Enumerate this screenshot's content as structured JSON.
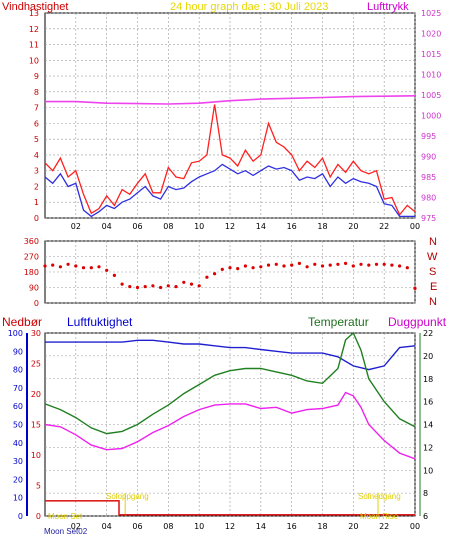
{
  "header": {
    "left_label": "Vindhastighet",
    "title": "24 hour graph dae : 30 Juli 2023",
    "right_label": "Lufttrykk"
  },
  "compass_labels": [
    "N",
    "W",
    "S",
    "E",
    "N"
  ],
  "lower_labels": {
    "precip": "Nedbør",
    "humidity": "Luftfuktighet",
    "temperature": "Temperatur",
    "dewpoint": "Duggpunkt"
  },
  "annotations": {
    "moon_set": "Moon Set",
    "moon_set_tick": "02",
    "sunrise": "Soloppgang",
    "sunset": "Solnedgang",
    "moon_rise": "Moon Rise"
  },
  "colors": {
    "wind": "#ff2020",
    "wind_avg": "#3030e0",
    "pressure": "#ee44ee",
    "direction": "#dd0000",
    "humidity": "#2020d0",
    "temperature": "#208020",
    "dewpoint": "#ee22ee",
    "precip": "#dd2020",
    "axis_left": "#cc0000",
    "axis_right": "#cc33cc",
    "grid": "#999999"
  },
  "chart_data": [
    {
      "type": "line",
      "title": "24 hour graph dae : 30 Juli 2023",
      "xlabel": "",
      "ylabel": "Vindhastighet",
      "x_ticks": [
        "02",
        "04",
        "06",
        "08",
        "10",
        "12",
        "14",
        "16",
        "18",
        "20",
        "22",
        "00"
      ],
      "xlim": [
        0,
        24
      ],
      "ylim": [
        0,
        13
      ],
      "y_ticks": [
        "0",
        "1",
        "2",
        "3",
        "4",
        "5",
        "6",
        "7",
        "8",
        "9",
        "10",
        "11",
        "12",
        "13"
      ],
      "y2lim": [
        975,
        1025
      ],
      "y2_ticks": [
        "975",
        "980",
        "985",
        "990",
        "995",
        "1000",
        "1005",
        "1010",
        "1015",
        "1020",
        "1025"
      ],
      "grid": true,
      "series": [
        {
          "name": "Vindhastighet",
          "axis": "left",
          "x": [
            0,
            0.5,
            1,
            1.5,
            2,
            2.5,
            3,
            3.5,
            4,
            4.5,
            5,
            5.5,
            6,
            6.5,
            7,
            7.5,
            8,
            8.5,
            9,
            9.5,
            10,
            10.5,
            11,
            11.5,
            12,
            12.5,
            13,
            13.5,
            14,
            14.5,
            15,
            15.5,
            16,
            16.5,
            17,
            17.5,
            18,
            18.5,
            19,
            19.5,
            20,
            20.5,
            21,
            21.5,
            22,
            22.5,
            23,
            23.5,
            24
          ],
          "values": [
            3.5,
            3.0,
            3.8,
            2.6,
            3.0,
            1.5,
            0.3,
            0.6,
            1.4,
            0.8,
            1.8,
            1.5,
            2.2,
            2.8,
            1.6,
            1.6,
            3.2,
            2.6,
            2.5,
            3.5,
            3.6,
            4.0,
            7.2,
            4.0,
            3.8,
            3.3,
            4.3,
            3.6,
            4.0,
            6.0,
            4.8,
            4.5,
            4.0,
            3.0,
            3.6,
            3.2,
            3.8,
            2.6,
            3.4,
            2.9,
            3.6,
            3.0,
            2.8,
            3.0,
            1.2,
            1.3,
            0.2,
            0.8,
            0.4
          ]
        },
        {
          "name": "Vindhastighet snitt",
          "axis": "left",
          "x": [
            0,
            0.5,
            1,
            1.5,
            2,
            2.5,
            3,
            3.5,
            4,
            4.5,
            5,
            5.5,
            6,
            6.5,
            7,
            7.5,
            8,
            8.5,
            9,
            9.5,
            10,
            10.5,
            11,
            11.5,
            12,
            12.5,
            13,
            13.5,
            14,
            14.5,
            15,
            15.5,
            16,
            16.5,
            17,
            17.5,
            18,
            18.5,
            19,
            19.5,
            20,
            20.5,
            21,
            21.5,
            22,
            22.5,
            23,
            23.5,
            24
          ],
          "values": [
            2.6,
            2.2,
            2.8,
            2.0,
            2.2,
            0.5,
            0.1,
            0.4,
            0.8,
            0.6,
            1.0,
            1.2,
            1.6,
            2.0,
            1.4,
            1.2,
            2.0,
            1.8,
            1.9,
            2.3,
            2.6,
            2.8,
            3.0,
            3.4,
            3.1,
            2.8,
            3.0,
            2.7,
            3.0,
            3.3,
            3.1,
            3.2,
            3.0,
            2.4,
            2.6,
            2.5,
            2.8,
            2.0,
            2.6,
            2.2,
            2.5,
            2.3,
            2.2,
            2.0,
            0.9,
            0.8,
            0.1,
            0.1,
            0.1
          ]
        },
        {
          "name": "Lufttrykk",
          "axis": "right",
          "x": [
            0,
            2,
            4,
            6,
            8,
            10,
            12,
            14,
            16,
            18,
            20,
            22,
            24
          ],
          "values": [
            1003.4,
            1003.4,
            1003.0,
            1002.9,
            1002.8,
            1003.0,
            1003.6,
            1004.0,
            1004.2,
            1004.4,
            1004.6,
            1004.7,
            1004.8
          ]
        }
      ]
    },
    {
      "type": "scatter",
      "title": "",
      "xlabel": "",
      "ylabel": "",
      "xlim": [
        0,
        24
      ],
      "ylim": [
        0,
        360
      ],
      "y_ticks": [
        "0",
        "90",
        "180",
        "270",
        "360"
      ],
      "grid": true,
      "series": [
        {
          "name": "",
          "x": [
            0,
            0.5,
            1,
            1.5,
            2,
            2.5,
            3,
            3.5,
            4,
            4.5,
            5,
            5.5,
            6,
            6.5,
            7,
            7.5,
            8,
            8.5,
            9,
            9.5,
            10,
            10.5,
            11,
            11.5,
            12,
            12.5,
            13,
            13.5,
            14,
            14.5,
            15,
            15.5,
            16,
            16.5,
            17,
            17.5,
            18,
            18.5,
            19,
            19.5,
            20,
            20.5,
            21,
            21.5,
            22,
            22.5,
            23,
            23.5,
            24
          ],
          "values": [
            215,
            220,
            210,
            225,
            215,
            205,
            205,
            210,
            190,
            160,
            110,
            95,
            90,
            95,
            100,
            90,
            100,
            95,
            120,
            110,
            100,
            150,
            170,
            195,
            205,
            200,
            215,
            205,
            210,
            220,
            225,
            215,
            220,
            230,
            210,
            225,
            215,
            220,
            225,
            230,
            215,
            225,
            220,
            225,
            225,
            220,
            215,
            205,
            85
          ]
        }
      ]
    },
    {
      "type": "line",
      "title": "",
      "xlabel": "",
      "ylabel": "",
      "x_ticks": [
        "02",
        "04",
        "06",
        "08",
        "10",
        "12",
        "14",
        "16",
        "18",
        "20",
        "22",
        "00"
      ],
      "xlim": [
        0,
        24
      ],
      "axes": {
        "precip": {
          "lim": [
            0,
            30
          ],
          "ticks": [
            "0",
            "5",
            "10",
            "15",
            "20",
            "25",
            "30"
          ]
        },
        "humidity": {
          "lim": [
            0,
            100
          ],
          "ticks": [
            "0",
            "10",
            "20",
            "30",
            "40",
            "50",
            "60",
            "70",
            "80",
            "90",
            "100"
          ]
        },
        "temperature": {
          "lim": [
            6,
            22
          ],
          "ticks": [
            "6",
            "8",
            "10",
            "12",
            "14",
            "16",
            "18",
            "20",
            "22"
          ]
        }
      },
      "grid": true,
      "series": [
        {
          "name": "Luftfuktighet",
          "axis": "humidity",
          "x": [
            0,
            1,
            2,
            3,
            4,
            5,
            6,
            7,
            8,
            9,
            10,
            11,
            12,
            13,
            14,
            15,
            16,
            17,
            18,
            19,
            20,
            21,
            22,
            23,
            24
          ],
          "values": [
            95,
            95,
            95,
            95,
            95,
            95,
            96,
            96,
            95,
            94,
            94,
            93,
            92,
            92,
            91,
            90,
            89,
            89,
            89,
            87,
            82,
            80,
            82,
            92,
            93
          ]
        },
        {
          "name": "Temperatur",
          "axis": "temperature",
          "x": [
            0,
            1,
            2,
            3,
            4,
            5,
            6,
            7,
            8,
            9,
            10,
            11,
            12,
            13,
            14,
            15,
            16,
            17,
            18,
            19,
            19.5,
            20,
            20.5,
            21,
            22,
            23,
            24
          ],
          "values": [
            15.8,
            15.3,
            14.6,
            13.7,
            13.2,
            13.4,
            14.0,
            14.9,
            15.7,
            16.7,
            17.5,
            18.3,
            18.7,
            18.9,
            18.9,
            18.6,
            18.3,
            17.8,
            17.6,
            18.9,
            21.4,
            22.0,
            20.5,
            18.0,
            16.0,
            14.5,
            13.8
          ]
        },
        {
          "name": "Duggpunkt",
          "axis": "temperature",
          "x": [
            0,
            1,
            2,
            3,
            4,
            5,
            6,
            7,
            8,
            9,
            10,
            11,
            12,
            13,
            14,
            15,
            16,
            17,
            18,
            19,
            19.5,
            20,
            20.5,
            21,
            22,
            23,
            24
          ],
          "values": [
            14.0,
            13.8,
            13.1,
            12.2,
            11.8,
            11.9,
            12.5,
            13.3,
            13.9,
            14.7,
            15.3,
            15.7,
            15.8,
            15.8,
            15.4,
            15.5,
            15.0,
            15.3,
            15.4,
            15.7,
            16.8,
            16.5,
            15.5,
            14.0,
            12.6,
            11.5,
            11.0
          ]
        },
        {
          "name": "Nedbør",
          "axis": "precip",
          "x": [
            0,
            4.8,
            4.8,
            24
          ],
          "values": [
            2.5,
            2.5,
            0.2,
            0.2
          ]
        }
      ]
    }
  ]
}
